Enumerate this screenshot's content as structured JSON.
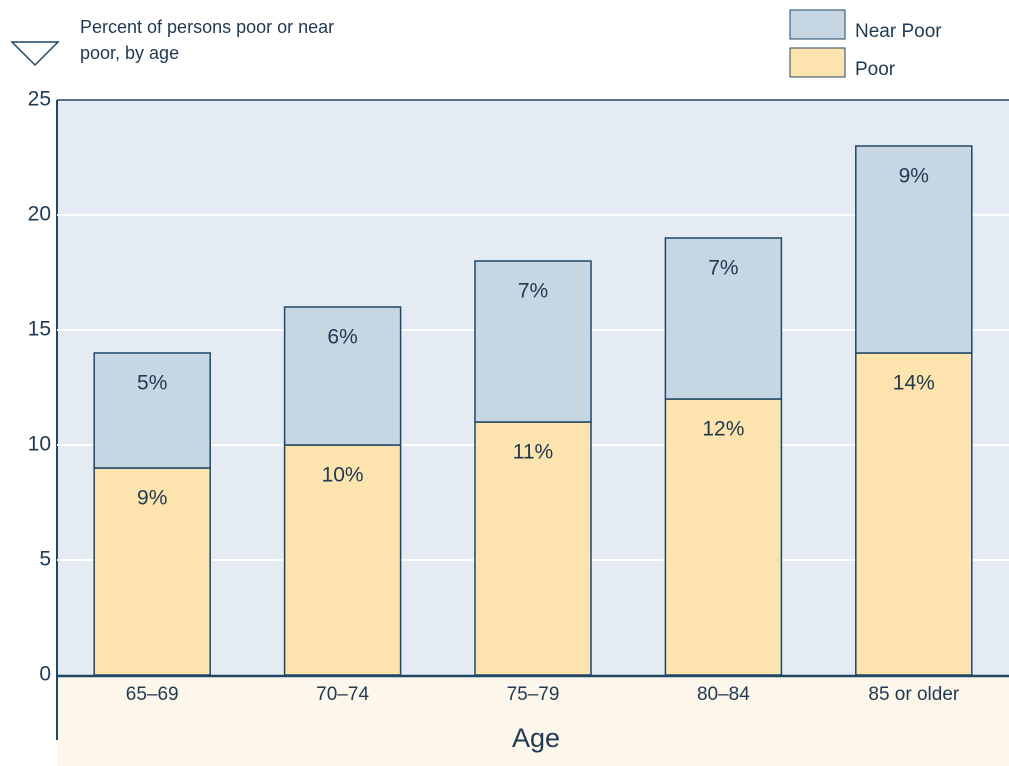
{
  "chart_data": {
    "type": "stacked_bar",
    "title": "Percent of persons poor or near poor, by age",
    "x_label": "Age",
    "categories": [
      "65–69",
      "70–74",
      "75–79",
      "80–84",
      "85 or older"
    ],
    "series": [
      {
        "name": "Poor",
        "color": "#fde3ad",
        "values": [
          9,
          10,
          11,
          12,
          14
        ],
        "value_labels": [
          "9%",
          "10%",
          "11%",
          "12%",
          "14%"
        ]
      },
      {
        "name": "Near Poor",
        "color": "#c6d6e3",
        "values": [
          5,
          6,
          7,
          7,
          9
        ],
        "value_labels": [
          "5%",
          "6%",
          "7%",
          "7%",
          "9%"
        ]
      }
    ],
    "ylim": [
      0,
      25
    ],
    "yticks": [
      0,
      5,
      10,
      15,
      20,
      25
    ],
    "grid": true
  }
}
